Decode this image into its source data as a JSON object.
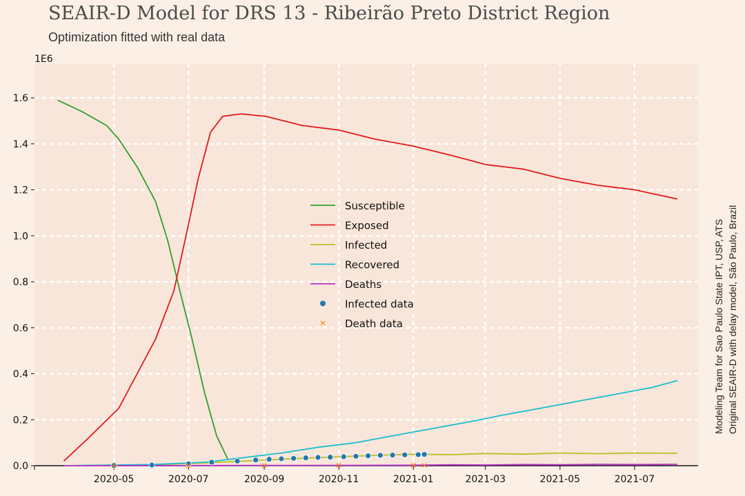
{
  "chart_data": {
    "type": "line",
    "title": "SEAIR-D Model for DRS 13 - Ribeirão Preto District Region",
    "subtitle": "Optimization fitted with real data",
    "y_multiplier": "1E6",
    "xlabel": "",
    "ylabel": "",
    "ylim": [
      0,
      1.75
    ],
    "xlim": [
      "2020-02-26",
      "2021-08-22"
    ],
    "grid": true,
    "legend_position": "center",
    "x_ticks": [
      "2020-05",
      "2020-07",
      "2020-09",
      "2020-11",
      "2021-01",
      "2021-03",
      "2021-05",
      "2021-07"
    ],
    "y_ticks": [
      "0.0",
      "0.2",
      "0.4",
      "0.6",
      "0.8",
      "1.0",
      "1.2",
      "1.4",
      "1.6"
    ],
    "series": [
      {
        "name": "Susceptible",
        "color": "#2ca02c",
        "kind": "line",
        "x": [
          "2020-03-16",
          "2020-04-05",
          "2020-04-25",
          "2020-05-05",
          "2020-05-20",
          "2020-06-04",
          "2020-06-14",
          "2020-06-24",
          "2020-07-04",
          "2020-07-14",
          "2020-07-24",
          "2020-08-02"
        ],
        "y": [
          1.59,
          1.54,
          1.48,
          1.42,
          1.3,
          1.15,
          0.98,
          0.76,
          0.55,
          0.32,
          0.13,
          0.03
        ]
      },
      {
        "name": "Exposed",
        "color": "#e31a1c",
        "kind": "line",
        "x": [
          "2020-03-21",
          "2020-04-10",
          "2020-05-05",
          "2020-05-20",
          "2020-06-04",
          "2020-06-19",
          "2020-06-29",
          "2020-07-09",
          "2020-07-19",
          "2020-07-29",
          "2020-08-13",
          "2020-09-02",
          "2020-10-02",
          "2020-11-01",
          "2020-12-01",
          "2021-01-01",
          "2021-02-01",
          "2021-03-01",
          "2021-04-01",
          "2021-05-01",
          "2021-06-01",
          "2021-07-01",
          "2021-08-05"
        ],
        "y": [
          0.02,
          0.12,
          0.25,
          0.4,
          0.55,
          0.76,
          1.0,
          1.25,
          1.45,
          1.52,
          1.53,
          1.52,
          1.48,
          1.46,
          1.42,
          1.39,
          1.35,
          1.31,
          1.29,
          1.25,
          1.22,
          1.2,
          1.16
        ]
      },
      {
        "name": "Infected",
        "color": "#bcbd22",
        "kind": "line",
        "x": [
          "2020-03-21",
          "2020-06-01",
          "2020-07-15",
          "2020-08-15",
          "2020-10-01",
          "2020-12-01",
          "2021-01-01",
          "2021-02-01",
          "2021-03-01",
          "2021-04-01",
          "2021-05-01",
          "2021-06-01",
          "2021-07-01",
          "2021-08-05"
        ],
        "y": [
          0.0,
          0.004,
          0.012,
          0.02,
          0.032,
          0.045,
          0.05,
          0.048,
          0.053,
          0.05,
          0.055,
          0.052,
          0.055,
          0.054
        ]
      },
      {
        "name": "Recovered",
        "color": "#17becf",
        "kind": "line",
        "x": [
          "2020-03-21",
          "2020-06-01",
          "2020-07-15",
          "2020-08-15",
          "2020-09-15",
          "2020-10-15",
          "2020-11-15",
          "2020-12-15",
          "2021-01-15",
          "2021-02-15",
          "2021-03-15",
          "2021-04-15",
          "2021-05-15",
          "2021-06-15",
          "2021-07-15",
          "2021-08-05"
        ],
        "y": [
          0.0,
          0.005,
          0.015,
          0.035,
          0.055,
          0.08,
          0.1,
          0.13,
          0.16,
          0.19,
          0.22,
          0.25,
          0.28,
          0.31,
          0.34,
          0.37
        ]
      },
      {
        "name": "Deaths",
        "color": "#b730c7",
        "kind": "line",
        "x": [
          "2020-03-21",
          "2020-09-01",
          "2021-01-01",
          "2021-02-01",
          "2021-03-01",
          "2021-04-01",
          "2021-05-01",
          "2021-06-01",
          "2021-07-01",
          "2021-08-05"
        ],
        "y": [
          0.0,
          0.001,
          0.002,
          0.004,
          0.003,
          0.005,
          0.004,
          0.006,
          0.005,
          0.006
        ]
      },
      {
        "name": "Infected data",
        "color": "#1f77b4",
        "kind": "scatter",
        "x": [
          "2020-05-01",
          "2020-06-01",
          "2020-07-01",
          "2020-07-20",
          "2020-08-10",
          "2020-08-25",
          "2020-09-05",
          "2020-09-15",
          "2020-09-25",
          "2020-10-05",
          "2020-10-15",
          "2020-10-25",
          "2020-11-05",
          "2020-11-15",
          "2020-11-25",
          "2020-12-05",
          "2020-12-15",
          "2020-12-25",
          "2021-01-05",
          "2021-01-10"
        ],
        "y": [
          0.001,
          0.003,
          0.008,
          0.015,
          0.02,
          0.025,
          0.028,
          0.03,
          0.032,
          0.034,
          0.036,
          0.037,
          0.039,
          0.041,
          0.043,
          0.045,
          0.046,
          0.047,
          0.048,
          0.049
        ]
      },
      {
        "name": "Death data",
        "color": "#ff7f0e",
        "kind": "marker-x",
        "x": [
          "2020-05-01",
          "2020-07-01",
          "2020-09-01",
          "2020-11-01",
          "2021-01-01",
          "2021-01-10"
        ],
        "y": [
          0.0,
          0.0005,
          0.001,
          0.0012,
          0.0014,
          0.0015
        ]
      }
    ]
  },
  "side_note": {
    "line1": "Modeling Team for Sao Paulo State IPT, USP, ATS",
    "line2": "Original SEAIR-D with delay model, São Paulo, Brazil"
  },
  "colors": {
    "background": "#fcf0e6",
    "plot_background": "#f9e6da",
    "grid": "#ffffff"
  }
}
